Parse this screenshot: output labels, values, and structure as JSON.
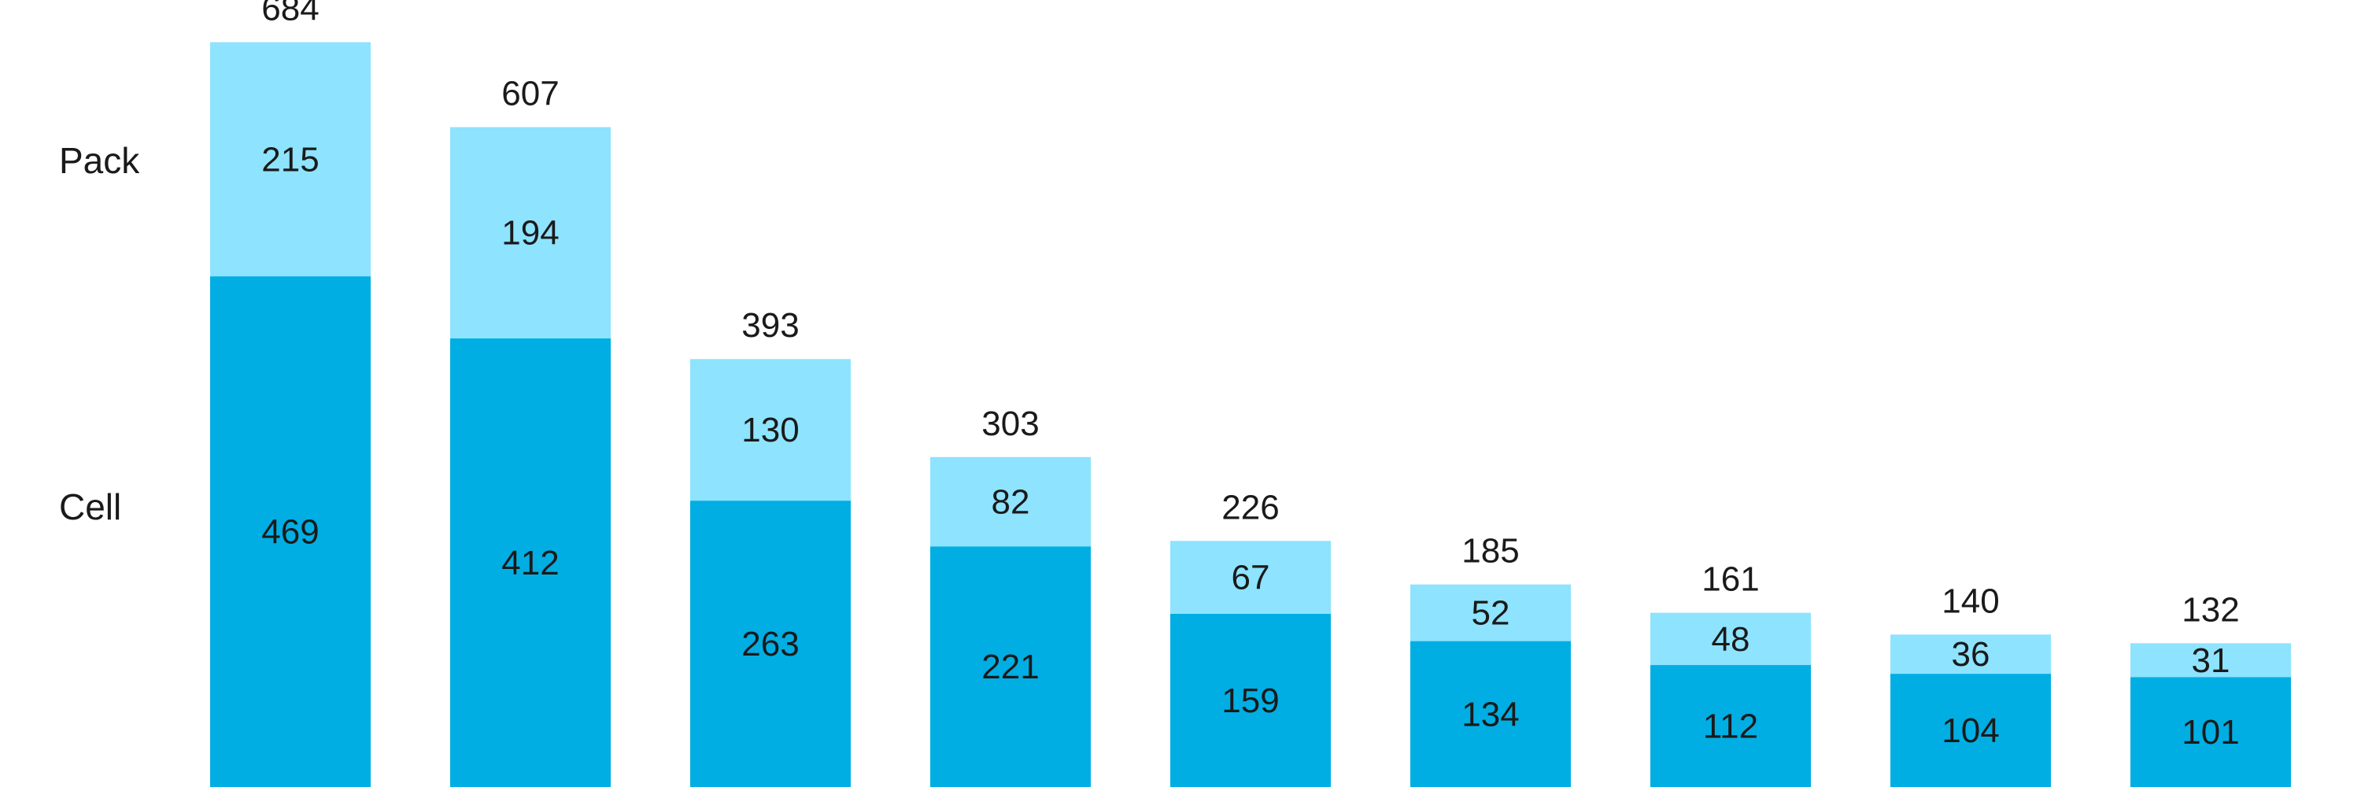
{
  "chart_data": {
    "type": "bar",
    "stacked": true,
    "categories": [
      "",
      "",
      "",
      "",
      "",
      "",
      "",
      "",
      ""
    ],
    "series": [
      {
        "name": "Cell",
        "color": "#00AEE3",
        "values": [
          469,
          412,
          263,
          221,
          159,
          134,
          112,
          104,
          101
        ]
      },
      {
        "name": "Pack",
        "color": "#8EE3FE",
        "values": [
          215,
          194,
          130,
          82,
          67,
          52,
          48,
          36,
          31
        ]
      }
    ],
    "totals": [
      684,
      607,
      393,
      303,
      226,
      185,
      161,
      140,
      132
    ],
    "legend_position": "left",
    "data_labels": true,
    "grid": false
  }
}
